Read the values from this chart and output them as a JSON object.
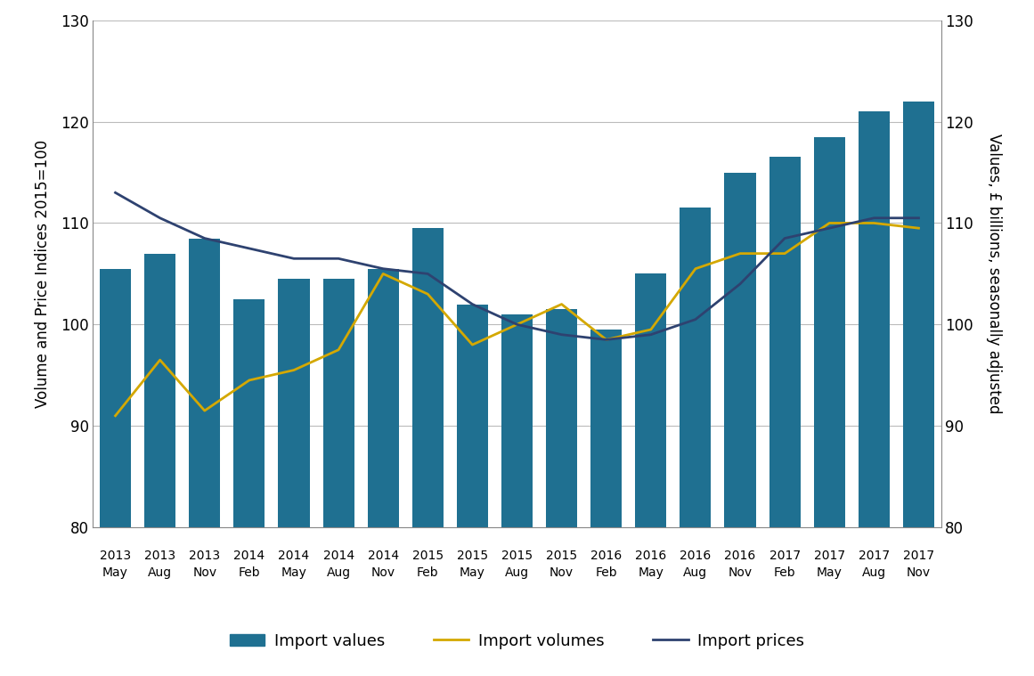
{
  "x_labels_year": [
    "2013",
    "2013",
    "2013",
    "2014",
    "2014",
    "2014",
    "2014",
    "2015",
    "2015",
    "2015",
    "2015",
    "2016",
    "2016",
    "2016",
    "2016",
    "2017",
    "2017",
    "2017",
    "2017"
  ],
  "x_labels_month": [
    "May",
    "Aug",
    "Nov",
    "Feb",
    "May",
    "Aug",
    "Nov",
    "Feb",
    "May",
    "Aug",
    "Nov",
    "Feb",
    "May",
    "Aug",
    "Nov",
    "Feb",
    "May",
    "Aug",
    "Nov"
  ],
  "import_values": [
    105.5,
    107.0,
    108.5,
    102.5,
    104.5,
    104.5,
    105.5,
    109.5,
    102.0,
    101.0,
    101.5,
    99.5,
    105.0,
    111.5,
    115.0,
    116.5,
    118.5,
    121.0,
    122.0
  ],
  "import_volumes": [
    91.0,
    96.5,
    91.5,
    94.5,
    95.5,
    97.5,
    105.0,
    103.0,
    98.0,
    100.0,
    102.0,
    98.5,
    99.5,
    105.5,
    107.0,
    107.0,
    110.0,
    110.0,
    109.5
  ],
  "import_prices": [
    113.0,
    110.5,
    108.5,
    107.5,
    106.5,
    106.5,
    105.5,
    105.0,
    102.0,
    100.0,
    99.0,
    98.5,
    99.0,
    100.5,
    104.0,
    108.5,
    109.5,
    110.5,
    110.5
  ],
  "bar_color": "#1f7091",
  "volume_color": "#d4a800",
  "price_color": "#2e4270",
  "ylim": [
    80,
    130
  ],
  "yticks": [
    80,
    90,
    100,
    110,
    120,
    130
  ],
  "ylabel_left": "Volume and Price Indices 2015=100",
  "ylabel_right": "Values, £ billions, seasonally adjusted",
  "legend_labels": [
    "Import values",
    "Import volumes",
    "Import prices"
  ],
  "background_color": "#ffffff",
  "grid_color": "#bbbbbb"
}
